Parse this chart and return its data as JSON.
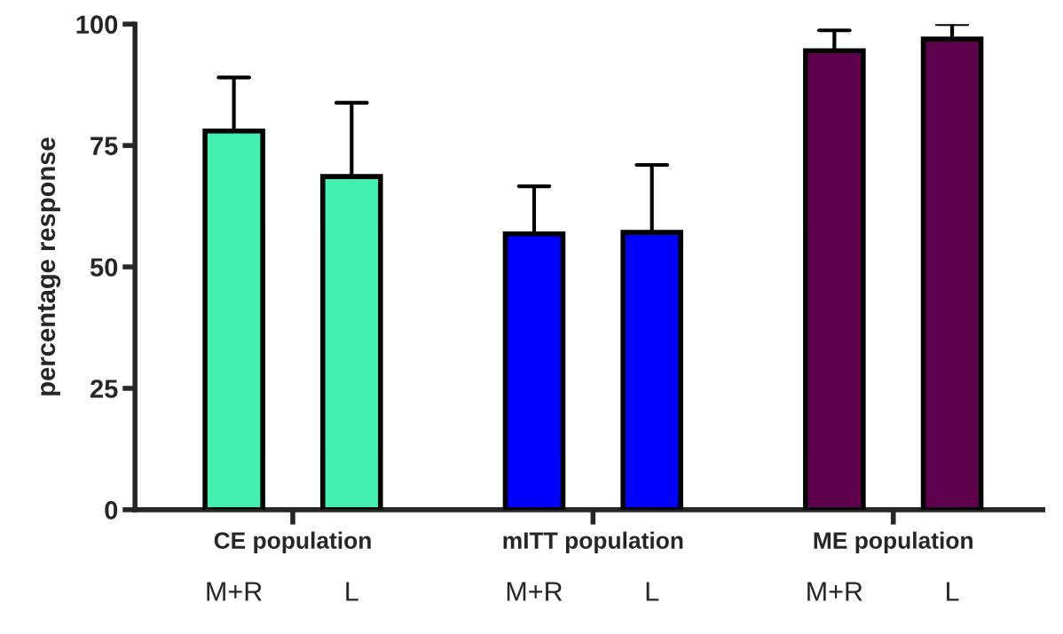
{
  "chart_data": {
    "type": "bar",
    "ylabel": "percentage response",
    "categories": [
      "M+R",
      "L",
      "M+R",
      "L",
      "M+R",
      "L"
    ],
    "values": [
      78,
      68.6,
      56.8,
      57.1,
      94.5,
      96.9
    ],
    "errors": [
      [
        78,
        89
      ],
      [
        68.6,
        83.8
      ],
      [
        56.8,
        66.6
      ],
      [
        57.1,
        71
      ],
      [
        94.5,
        98.7
      ],
      [
        96.9,
        100
      ]
    ],
    "colors": [
      "#43efb1",
      "#43efb1",
      "#0000ff",
      "#0000ff",
      "#5e004b",
      "#5e004b"
    ],
    "annotations": [
      "CE population",
      "mITT population",
      "ME population"
    ],
    "ylim": [
      0,
      100
    ],
    "yticks": [
      0,
      25,
      50,
      75,
      100
    ],
    "grid": false,
    "legend": false
  }
}
